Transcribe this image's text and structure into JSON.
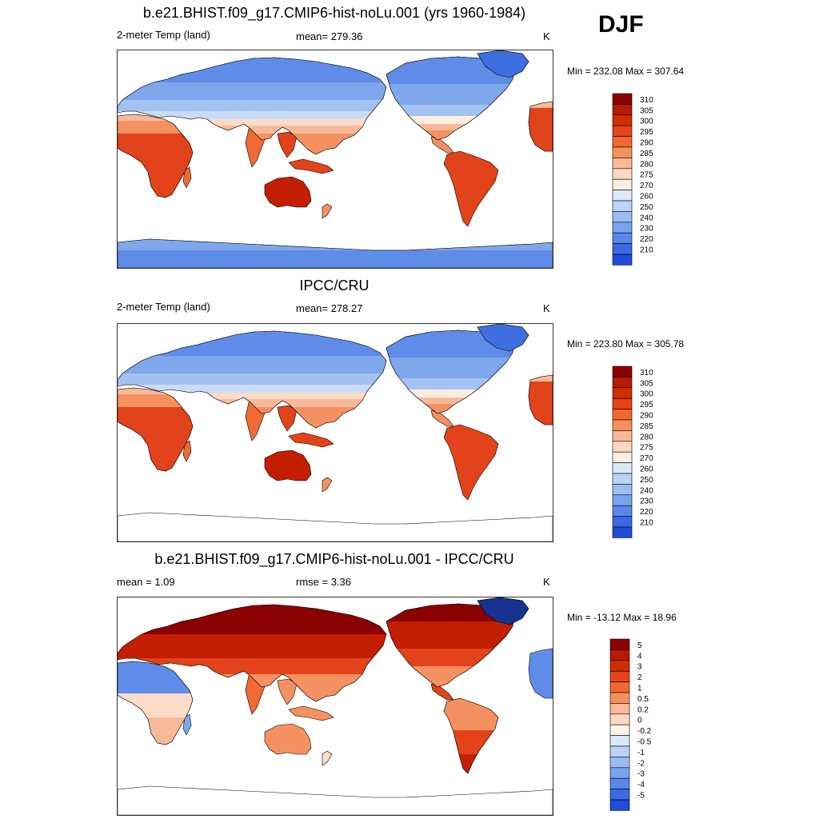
{
  "season": "DJF",
  "colors": {
    "warm": [
      "#8b0000",
      "#b51b00",
      "#d12e00",
      "#e84218",
      "#f2682f",
      "#f5915c",
      "#f9b896",
      "#fbd8c2",
      "#fdeee0"
    ],
    "cool": [
      "#dce9fb",
      "#bcd3f6",
      "#9bbdf2",
      "#79a3ef",
      "#5a88ea",
      "#3a6ae4",
      "#1f4cd8",
      "#0f2fbf",
      "#00188f"
    ],
    "diff": [
      "#8b0000",
      "#b51b00",
      "#d12e00",
      "#e84218",
      "#f2682f",
      "#f5915c",
      "#f9b896",
      "#fbd8c2",
      "#fdf2e6",
      "#dce9fb",
      "#bcd3f6",
      "#9bbdf2",
      "#79a3ef",
      "#5a88ea",
      "#3a6ae4",
      "#1f4cd8",
      "#0f2fbf",
      "#00188f"
    ],
    "land_outline": "#000000"
  },
  "panels": [
    {
      "title": "b.e21.BHIST.f09_g17.CMIP6-hist-noLu.001 (yrs 1960-1984)",
      "left": "2-meter Temp (land)",
      "center": "mean= 279.36",
      "right": "K",
      "minmax": "Min = 232.08 Max = 307.64"
    },
    {
      "title": "IPCC/CRU",
      "left": "2-meter Temp (land)",
      "center": "mean= 278.27",
      "right": "K",
      "minmax": "Min = 223.80 Max = 305.78"
    },
    {
      "title": "b.e21.BHIST.f09_g17.CMIP6-hist-noLu.001 - IPCC/CRU",
      "left": "mean =   1.09",
      "center": "rmse =   3.36",
      "right": "K",
      "minmax": "Min = -13.12 Max =  18.96"
    }
  ],
  "chart_data": [
    {
      "type": "heatmap",
      "title": "b.e21.BHIST.f09_g17.CMIP6-hist-noLu.001 (yrs 1960-1984)",
      "variable": "2-meter Temp (land)",
      "units": "K",
      "mean": 279.36,
      "min": 232.08,
      "max": 307.64,
      "colorbar_levels": [
        "310",
        "305",
        "300",
        "295",
        "290",
        "285",
        "280",
        "275",
        "270",
        "260",
        "250",
        "240",
        "230",
        "220",
        "210"
      ],
      "map_center_longitude": 180,
      "grid": false,
      "legend_placement": "right"
    },
    {
      "type": "heatmap",
      "title": "IPCC/CRU",
      "variable": "2-meter Temp (land)",
      "units": "K",
      "mean": 278.27,
      "min": 223.8,
      "max": 305.78,
      "colorbar_levels": [
        "310",
        "305",
        "300",
        "295",
        "290",
        "285",
        "280",
        "275",
        "270",
        "260",
        "250",
        "240",
        "230",
        "220",
        "210"
      ],
      "map_center_longitude": 180,
      "grid": false,
      "legend_placement": "right"
    },
    {
      "type": "heatmap",
      "title": "b.e21.BHIST.f09_g17.CMIP6-hist-noLu.001 - IPCC/CRU",
      "units": "K",
      "mean": 1.09,
      "rmse": 3.36,
      "min": -13.12,
      "max": 18.96,
      "colorbar_levels": [
        "5",
        "4",
        "3",
        "2",
        "1",
        "0.5",
        "0.2",
        "0",
        "-0.2",
        "-0.5",
        "-1",
        "-2",
        "-3",
        "-4",
        "-5"
      ],
      "map_center_longitude": 180,
      "grid": false,
      "legend_placement": "right"
    }
  ]
}
